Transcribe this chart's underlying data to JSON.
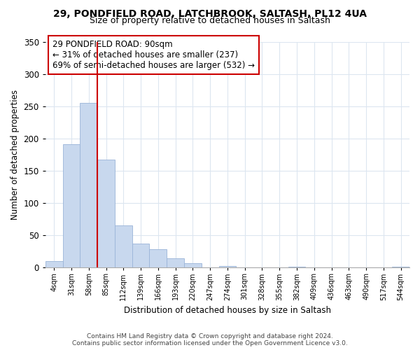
{
  "title": "29, PONDFIELD ROAD, LATCHBROOK, SALTASH, PL12 4UA",
  "subtitle": "Size of property relative to detached houses in Saltash",
  "xlabel": "Distribution of detached houses by size in Saltash",
  "ylabel": "Number of detached properties",
  "bar_labels": [
    "4sqm",
    "31sqm",
    "58sqm",
    "85sqm",
    "112sqm",
    "139sqm",
    "166sqm",
    "193sqm",
    "220sqm",
    "247sqm",
    "274sqm",
    "301sqm",
    "328sqm",
    "355sqm",
    "382sqm",
    "409sqm",
    "436sqm",
    "463sqm",
    "490sqm",
    "517sqm",
    "544sqm"
  ],
  "bar_values": [
    10,
    192,
    255,
    168,
    65,
    37,
    29,
    14,
    7,
    0,
    3,
    0,
    0,
    0,
    2,
    0,
    0,
    0,
    0,
    0,
    2
  ],
  "bar_color": "#c8d8ee",
  "bar_edge_color": "#9ab4d8",
  "vline_color": "#cc0000",
  "vline_x_index": 3,
  "ylim": [
    0,
    350
  ],
  "yticks": [
    0,
    50,
    100,
    150,
    200,
    250,
    300,
    350
  ],
  "annotation_text": "29 PONDFIELD ROAD: 90sqm\n← 31% of detached houses are smaller (237)\n69% of semi-detached houses are larger (532) →",
  "annotation_box_color": "#ffffff",
  "annotation_box_edge": "#cc0000",
  "footer_line1": "Contains HM Land Registry data © Crown copyright and database right 2024.",
  "footer_line2": "Contains public sector information licensed under the Open Government Licence v3.0.",
  "bg_color": "#ffffff",
  "grid_color": "#dce6f0"
}
